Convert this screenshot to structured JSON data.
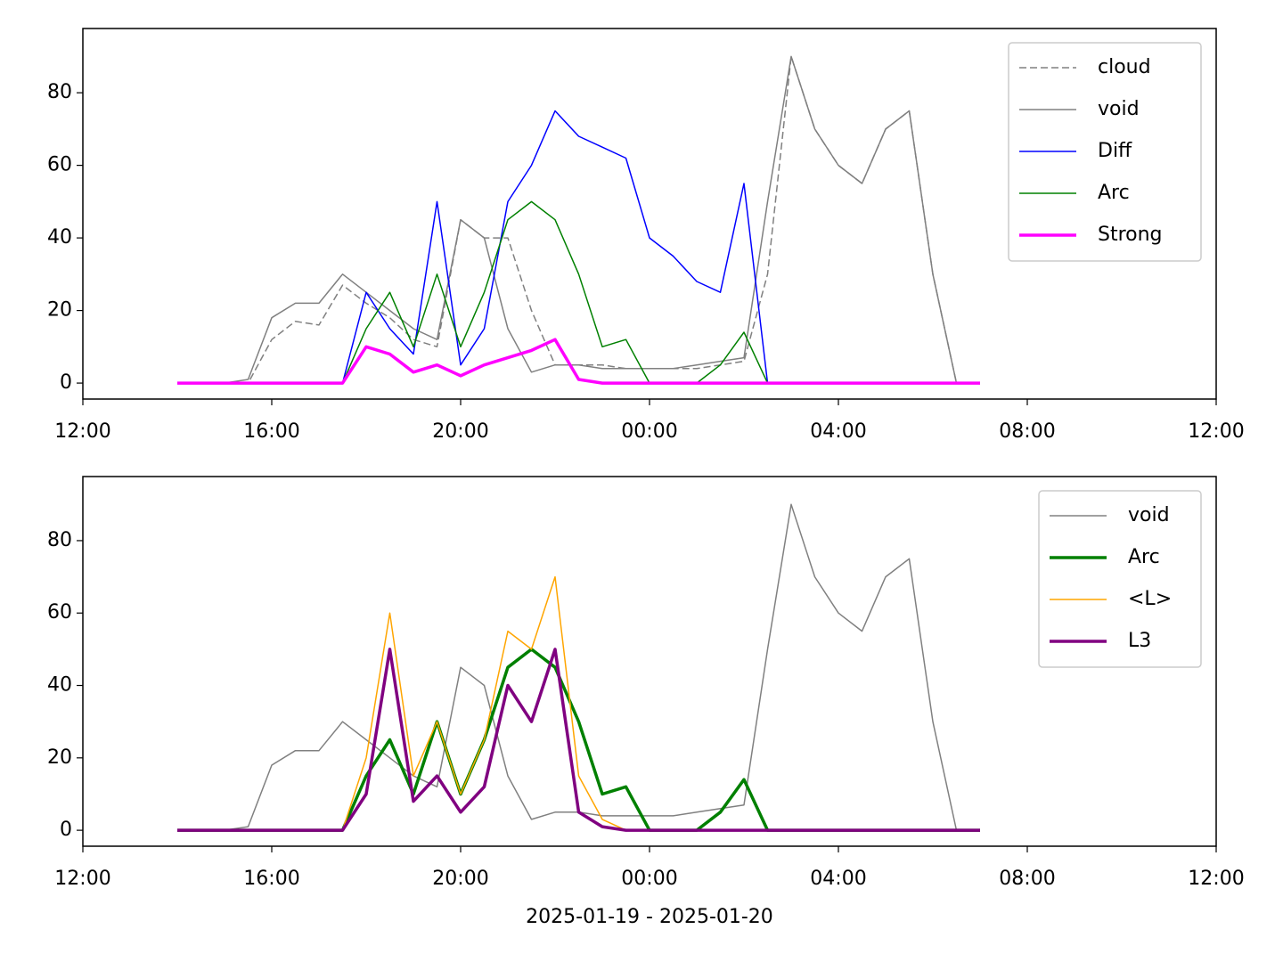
{
  "chart_data": [
    {
      "type": "line",
      "x": [
        "2025-01-19T14:00",
        "2025-01-19T14:30",
        "2025-01-19T15:00",
        "2025-01-19T15:30",
        "2025-01-19T16:00",
        "2025-01-19T16:30",
        "2025-01-19T17:00",
        "2025-01-19T17:30",
        "2025-01-19T18:00",
        "2025-01-19T18:30",
        "2025-01-19T19:00",
        "2025-01-19T19:30",
        "2025-01-19T20:00",
        "2025-01-19T20:30",
        "2025-01-19T21:00",
        "2025-01-19T21:30",
        "2025-01-19T22:00",
        "2025-01-19T22:30",
        "2025-01-19T23:00",
        "2025-01-19T23:30",
        "2025-01-20T00:00",
        "2025-01-20T00:30",
        "2025-01-20T01:00",
        "2025-01-20T01:30",
        "2025-01-20T02:00",
        "2025-01-20T02:30",
        "2025-01-20T03:00",
        "2025-01-20T03:30",
        "2025-01-20T04:00",
        "2025-01-20T04:30",
        "2025-01-20T05:00",
        "2025-01-20T05:30",
        "2025-01-20T06:00",
        "2025-01-20T06:30",
        "2025-01-20T07:00"
      ],
      "series": [
        {
          "name": "cloud",
          "color": "#808080",
          "linestyle": "dashed",
          "linewidth": 1.5,
          "values": [
            0,
            0,
            0,
            0,
            12,
            17,
            16,
            27,
            22,
            18,
            12,
            10,
            45,
            40,
            40,
            20,
            5,
            5,
            5,
            4,
            4,
            4,
            4,
            5,
            6,
            30,
            90,
            70,
            60,
            55,
            70,
            75,
            30,
            0,
            0
          ]
        },
        {
          "name": "void",
          "color": "#808080",
          "linestyle": "solid",
          "linewidth": 1.5,
          "values": [
            0,
            0,
            0,
            1,
            18,
            22,
            22,
            30,
            25,
            20,
            15,
            12,
            45,
            40,
            15,
            3,
            5,
            5,
            4,
            4,
            4,
            4,
            5,
            6,
            7,
            50,
            90,
            70,
            60,
            55,
            70,
            75,
            30,
            0,
            0
          ]
        },
        {
          "name": "Diff",
          "color": "#0000ff",
          "linestyle": "solid",
          "linewidth": 1.5,
          "values": [
            0,
            0,
            0,
            0,
            0,
            0,
            0,
            0,
            25,
            15,
            8,
            50,
            5,
            15,
            50,
            60,
            75,
            68,
            65,
            62,
            40,
            35,
            28,
            25,
            55,
            0,
            0,
            0,
            0,
            0,
            0,
            0,
            0,
            0,
            0
          ]
        },
        {
          "name": "Arc",
          "color": "#008000",
          "linestyle": "solid",
          "linewidth": 1.5,
          "values": [
            0,
            0,
            0,
            0,
            0,
            0,
            0,
            0,
            15,
            25,
            10,
            30,
            10,
            25,
            45,
            50,
            45,
            30,
            10,
            12,
            0,
            0,
            0,
            5,
            14,
            0,
            0,
            0,
            0,
            0,
            0,
            0,
            0,
            0,
            0
          ]
        },
        {
          "name": "Strong",
          "color": "#ff00ff",
          "linestyle": "solid",
          "linewidth": 3.5,
          "values": [
            0,
            0,
            0,
            0,
            0,
            0,
            0,
            0,
            10,
            8,
            3,
            5,
            2,
            5,
            7,
            9,
            12,
            1,
            0,
            0,
            0,
            0,
            0,
            0,
            0,
            0,
            0,
            0,
            0,
            0,
            0,
            0,
            0,
            0,
            0
          ]
        }
      ],
      "xlim": [
        "2025-01-19T12:00",
        "2025-01-20T12:00"
      ],
      "xticks": [
        {
          "value": "2025-01-19T12:00",
          "label": "12:00"
        },
        {
          "value": "2025-01-19T16:00",
          "label": "16:00"
        },
        {
          "value": "2025-01-19T20:00",
          "label": "20:00"
        },
        {
          "value": "2025-01-20T00:00",
          "label": "00:00"
        },
        {
          "value": "2025-01-20T04:00",
          "label": "04:00"
        },
        {
          "value": "2025-01-20T08:00",
          "label": "08:00"
        },
        {
          "value": "2025-01-20T12:00",
          "label": "12:00"
        }
      ],
      "ylim": [
        -4.4,
        97.7
      ],
      "yticks": [
        0,
        20,
        40,
        60,
        80
      ],
      "legend": "upper right"
    },
    {
      "type": "line",
      "x": [
        "2025-01-19T14:00",
        "2025-01-19T14:30",
        "2025-01-19T15:00",
        "2025-01-19T15:30",
        "2025-01-19T16:00",
        "2025-01-19T16:30",
        "2025-01-19T17:00",
        "2025-01-19T17:30",
        "2025-01-19T18:00",
        "2025-01-19T18:30",
        "2025-01-19T19:00",
        "2025-01-19T19:30",
        "2025-01-19T20:00",
        "2025-01-19T20:30",
        "2025-01-19T21:00",
        "2025-01-19T21:30",
        "2025-01-19T22:00",
        "2025-01-19T22:30",
        "2025-01-19T23:00",
        "2025-01-19T23:30",
        "2025-01-20T00:00",
        "2025-01-20T00:30",
        "2025-01-20T01:00",
        "2025-01-20T01:30",
        "2025-01-20T02:00",
        "2025-01-20T02:30",
        "2025-01-20T03:00",
        "2025-01-20T03:30",
        "2025-01-20T04:00",
        "2025-01-20T04:30",
        "2025-01-20T05:00",
        "2025-01-20T05:30",
        "2025-01-20T06:00",
        "2025-01-20T06:30",
        "2025-01-20T07:00"
      ],
      "series": [
        {
          "name": "void",
          "color": "#808080",
          "linestyle": "solid",
          "linewidth": 1.5,
          "values": [
            0,
            0,
            0,
            1,
            18,
            22,
            22,
            30,
            25,
            20,
            15,
            12,
            45,
            40,
            15,
            3,
            5,
            5,
            4,
            4,
            4,
            4,
            5,
            6,
            7,
            50,
            90,
            70,
            60,
            55,
            70,
            75,
            30,
            0,
            0
          ]
        },
        {
          "name": "Arc",
          "color": "#008000",
          "linestyle": "solid",
          "linewidth": 3.5,
          "values": [
            0,
            0,
            0,
            0,
            0,
            0,
            0,
            0,
            15,
            25,
            10,
            30,
            10,
            25,
            45,
            50,
            45,
            30,
            10,
            12,
            0,
            0,
            0,
            5,
            14,
            0,
            0,
            0,
            0,
            0,
            0,
            0,
            0,
            0,
            0
          ]
        },
        {
          "name": "<L>",
          "color": "#ffa500",
          "linestyle": "solid",
          "linewidth": 1.5,
          "values": [
            0,
            0,
            0,
            0,
            0,
            0,
            0,
            0,
            20,
            60,
            15,
            30,
            10,
            25,
            55,
            50,
            70,
            15,
            3,
            0,
            0,
            0,
            0,
            0,
            0,
            0,
            0,
            0,
            0,
            0,
            0,
            0,
            0,
            0,
            0
          ]
        },
        {
          "name": "L3",
          "color": "#800080",
          "linestyle": "solid",
          "linewidth": 3.5,
          "values": [
            0,
            0,
            0,
            0,
            0,
            0,
            0,
            0,
            10,
            50,
            8,
            15,
            5,
            12,
            40,
            30,
            50,
            5,
            1,
            0,
            0,
            0,
            0,
            0,
            0,
            0,
            0,
            0,
            0,
            0,
            0,
            0,
            0,
            0,
            0
          ]
        }
      ],
      "xlim": [
        "2025-01-19T12:00",
        "2025-01-20T12:00"
      ],
      "xticks": [
        {
          "value": "2025-01-19T12:00",
          "label": "12:00"
        },
        {
          "value": "2025-01-19T16:00",
          "label": "16:00"
        },
        {
          "value": "2025-01-19T20:00",
          "label": "20:00"
        },
        {
          "value": "2025-01-20T00:00",
          "label": "00:00"
        },
        {
          "value": "2025-01-20T04:00",
          "label": "04:00"
        },
        {
          "value": "2025-01-20T08:00",
          "label": "08:00"
        },
        {
          "value": "2025-01-20T12:00",
          "label": "12:00"
        }
      ],
      "ylim": [
        -4.4,
        97.7
      ],
      "yticks": [
        0,
        20,
        40,
        60,
        80
      ],
      "legend": "upper right",
      "xlabel": "2025-01-19 - 2025-01-20"
    }
  ]
}
